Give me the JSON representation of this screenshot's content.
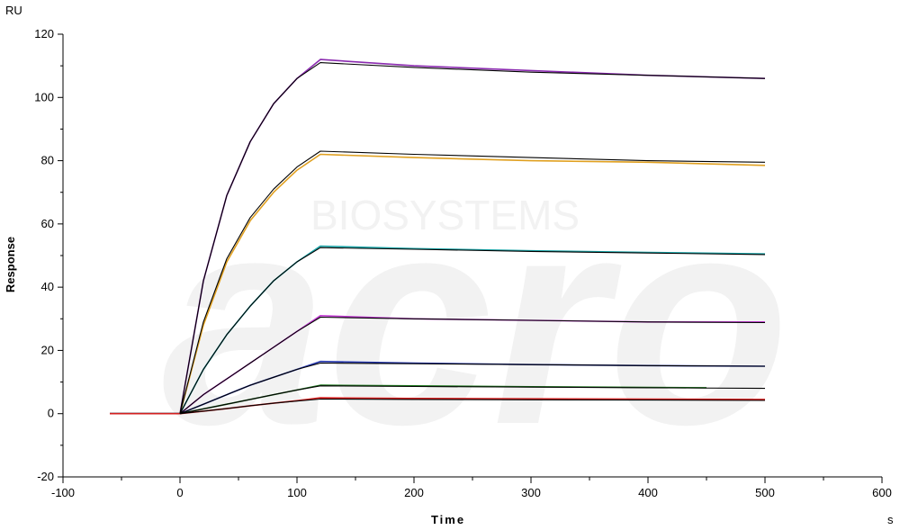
{
  "chart_data": {
    "type": "line",
    "xlabel": "Time",
    "ylabel": "Response",
    "x_unit": "s",
    "y_unit": "RU",
    "xlim": [
      -100,
      600
    ],
    "ylim": [
      -20,
      120
    ],
    "x_ticks": [
      -100,
      0,
      100,
      200,
      300,
      400,
      500,
      600
    ],
    "y_ticks": [
      -20,
      0,
      20,
      40,
      60,
      80,
      100,
      120
    ],
    "grid": false,
    "legend": "none",
    "watermark": "BIOSYSTEMS",
    "fit_color": "#000000",
    "series": [
      {
        "color": "#8B2BB0",
        "x": [
          -60,
          0,
          20,
          40,
          60,
          80,
          100,
          120,
          200,
          300,
          400,
          500
        ],
        "y": [
          0,
          0,
          42,
          69,
          86,
          98,
          106,
          112,
          110,
          108.5,
          107,
          106
        ]
      },
      {
        "color": "#E0A020",
        "x": [
          -60,
          0,
          20,
          40,
          60,
          80,
          100,
          120,
          200,
          300,
          400,
          500
        ],
        "y": [
          0,
          0,
          28,
          48,
          61,
          70,
          77,
          82,
          81,
          80,
          79.5,
          78.5
        ]
      },
      {
        "color": "#17A2A5",
        "x": [
          -60,
          0,
          20,
          40,
          60,
          80,
          100,
          120,
          200,
          300,
          400,
          500
        ],
        "y": [
          0,
          0,
          14,
          25,
          34,
          42,
          48,
          53,
          52.2,
          51.5,
          51,
          50.5
        ]
      },
      {
        "color": "#C03BD0",
        "x": [
          -60,
          0,
          20,
          40,
          60,
          80,
          100,
          120,
          200,
          300,
          400,
          500
        ],
        "y": [
          0,
          0,
          6,
          11,
          16,
          21,
          26,
          31,
          30,
          29.5,
          29,
          29
        ]
      },
      {
        "color": "#2233AA",
        "x": [
          -60,
          0,
          20,
          40,
          60,
          80,
          100,
          120,
          200,
          300,
          400,
          500
        ],
        "y": [
          0,
          0,
          3,
          6,
          9,
          11.5,
          14,
          16.5,
          16,
          15.5,
          15.2,
          15
        ]
      },
      {
        "color": "#1F7A1F",
        "x": [
          -60,
          0,
          20,
          40,
          60,
          80,
          100,
          120,
          200,
          300,
          400,
          450
        ],
        "y": [
          0,
          0,
          1.5,
          3,
          4.5,
          6,
          7.5,
          9,
          8.8,
          8.5,
          8.3,
          8.2
        ]
      },
      {
        "color": "#D42020",
        "x": [
          -60,
          0,
          20,
          40,
          60,
          80,
          100,
          120,
          200,
          300,
          400,
          500
        ],
        "y": [
          0,
          0,
          0.8,
          1.6,
          2.5,
          3.3,
          4.1,
          5,
          4.8,
          4.7,
          4.6,
          4.5
        ]
      }
    ],
    "fits": [
      {
        "x": [
          0,
          20,
          40,
          60,
          80,
          100,
          120,
          200,
          300,
          400,
          500
        ],
        "y": [
          0,
          42,
          69,
          86,
          98,
          106,
          111,
          109.5,
          108,
          107,
          106
        ]
      },
      {
        "x": [
          0,
          20,
          40,
          60,
          80,
          100,
          120,
          200,
          300,
          400,
          500
        ],
        "y": [
          0,
          29,
          49,
          62,
          71,
          78,
          83,
          82,
          81,
          80,
          79.5
        ]
      },
      {
        "x": [
          0,
          20,
          40,
          60,
          80,
          100,
          120,
          200,
          300,
          400,
          500
        ],
        "y": [
          0,
          14,
          25,
          34,
          42,
          48,
          52.5,
          52,
          51.3,
          50.8,
          50.3
        ]
      },
      {
        "x": [
          0,
          20,
          40,
          60,
          80,
          100,
          120,
          200,
          300,
          400,
          500
        ],
        "y": [
          0,
          6,
          11,
          16,
          21,
          26,
          30.5,
          30,
          29.5,
          29,
          28.8
        ]
      },
      {
        "x": [
          0,
          20,
          40,
          60,
          80,
          100,
          120,
          200,
          300,
          400,
          500
        ],
        "y": [
          0,
          3,
          6,
          9,
          11.5,
          14,
          16,
          15.8,
          15.5,
          15.2,
          15
        ]
      },
      {
        "x": [
          0,
          20,
          40,
          60,
          80,
          100,
          120,
          200,
          300,
          400,
          500
        ],
        "y": [
          0,
          1.5,
          3,
          4.5,
          6,
          7.5,
          8.8,
          8.6,
          8.4,
          8.2,
          8
        ]
      },
      {
        "x": [
          0,
          20,
          40,
          60,
          80,
          100,
          120,
          200,
          300,
          400,
          500
        ],
        "y": [
          0,
          0.8,
          1.6,
          2.5,
          3.3,
          4,
          4.6,
          4.5,
          4.4,
          4.3,
          4.2
        ]
      }
    ]
  }
}
